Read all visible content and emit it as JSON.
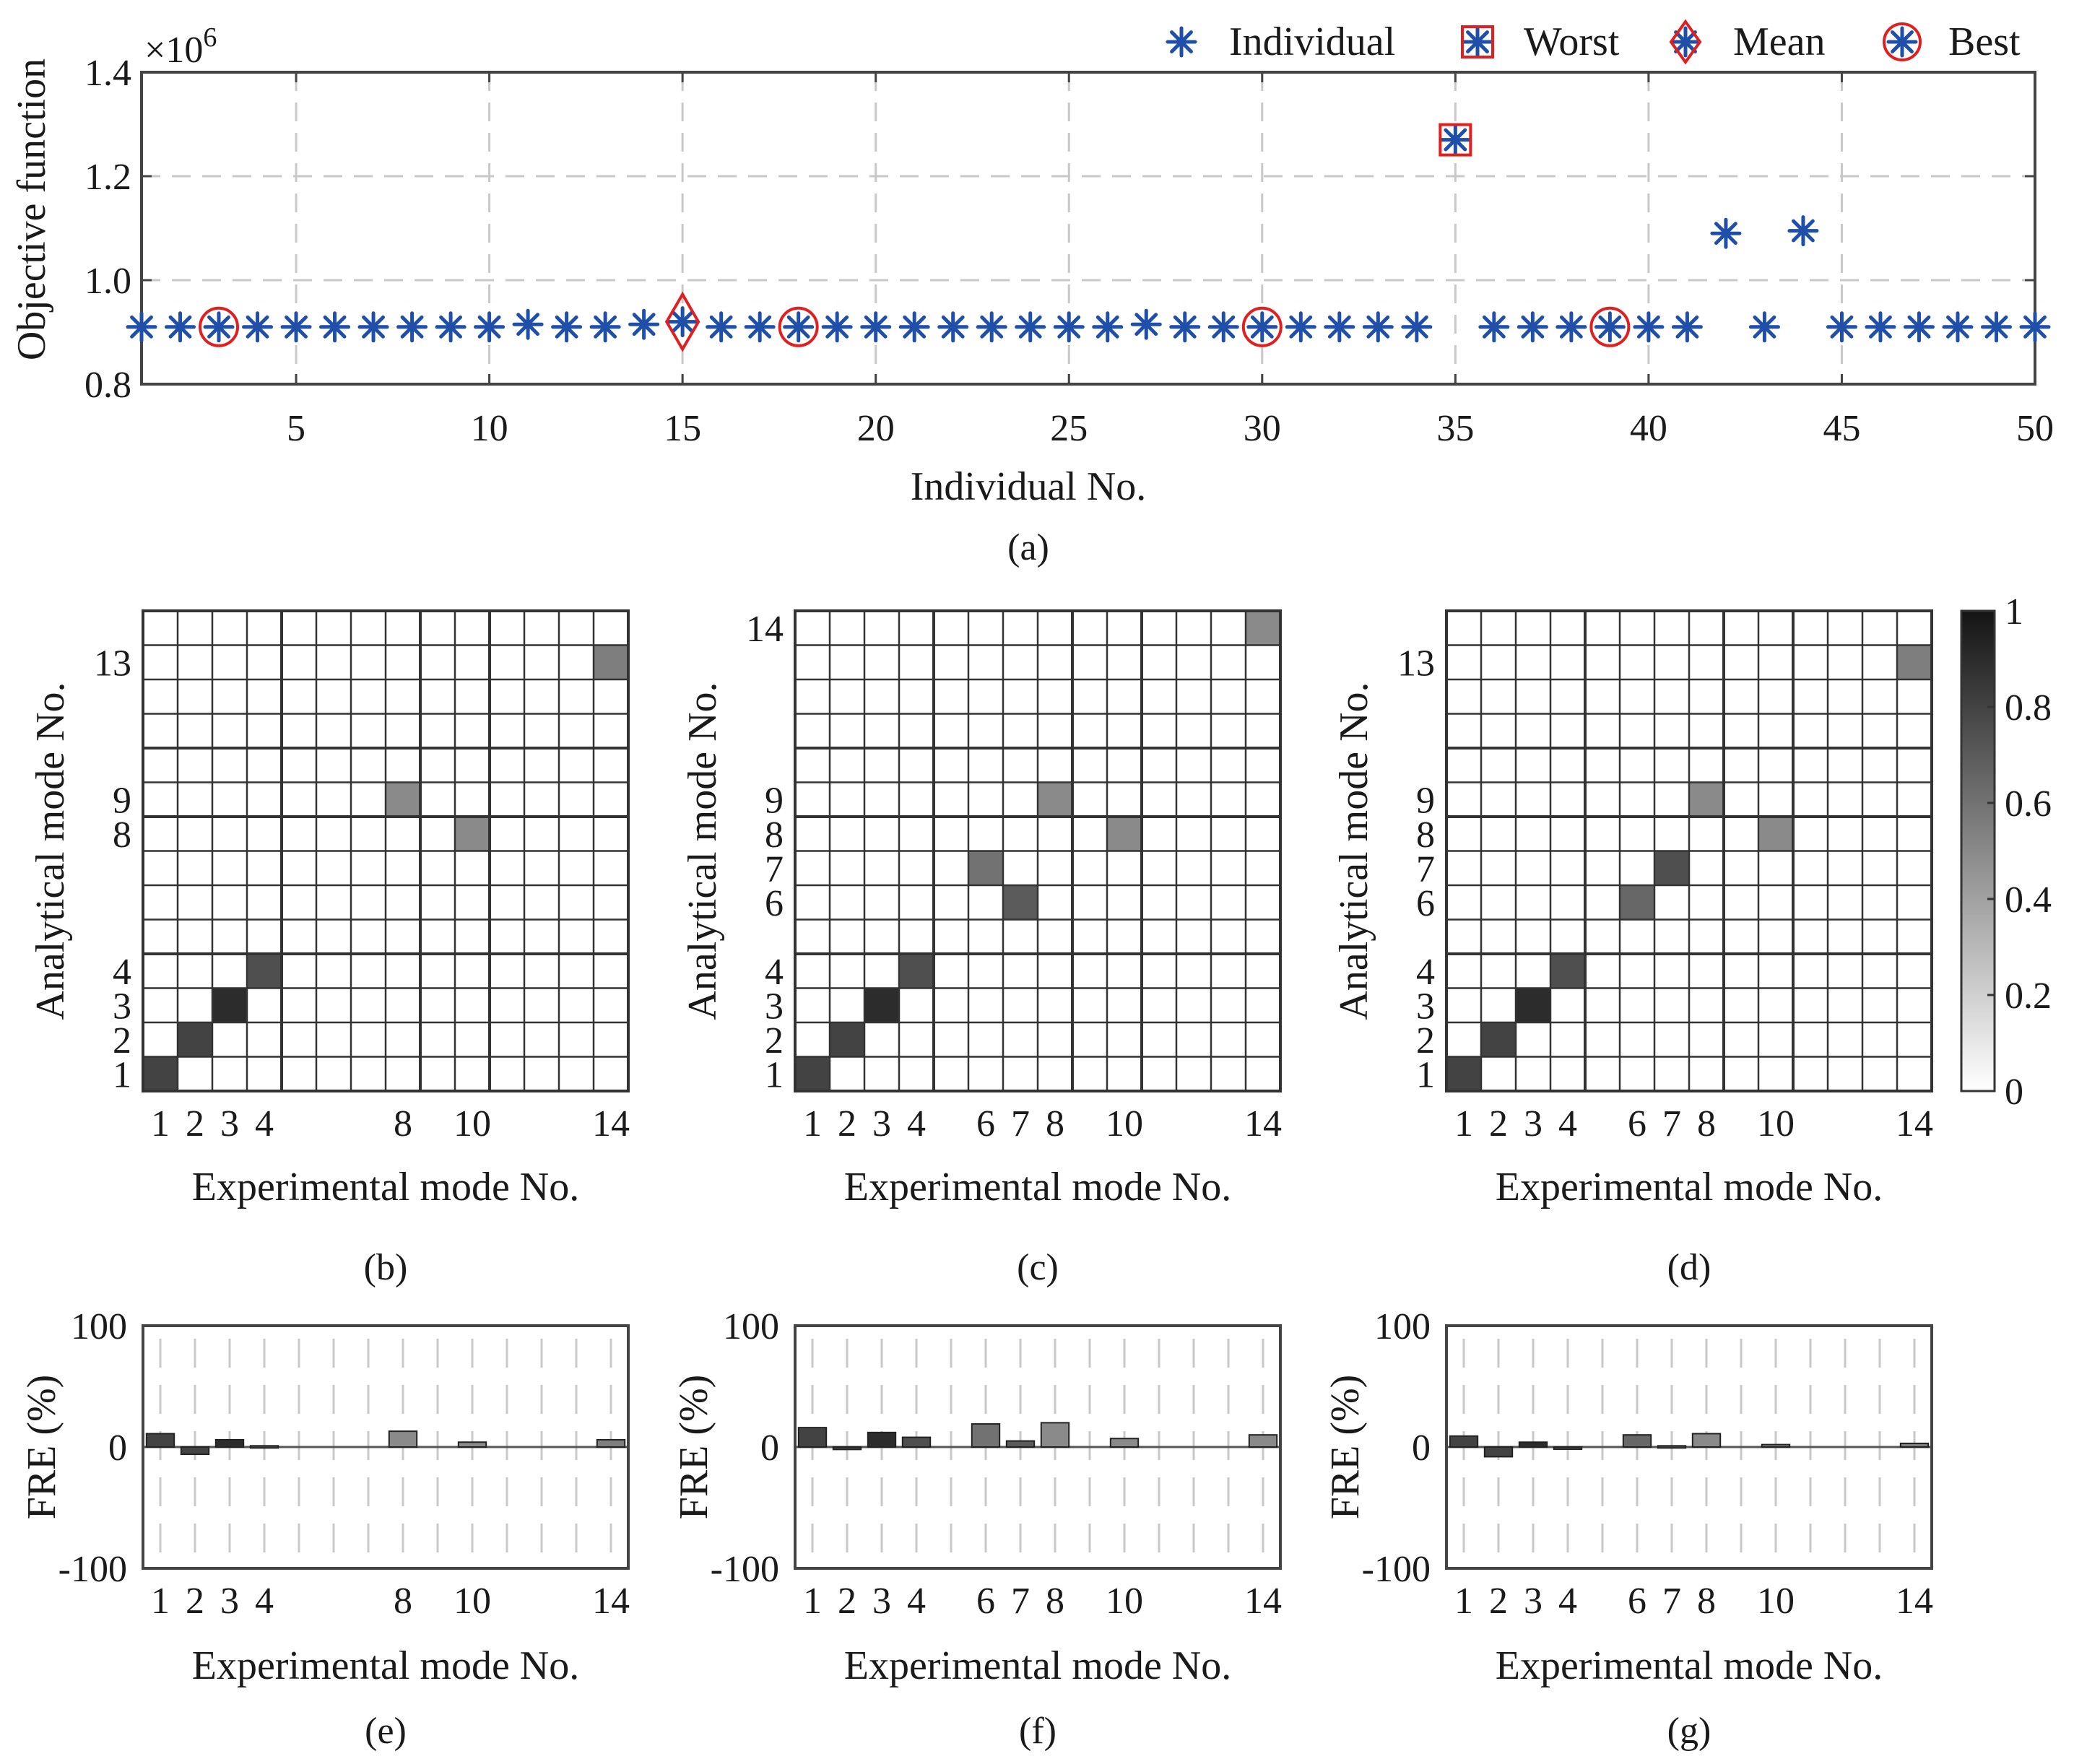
{
  "colors": {
    "marker": "#1f4fa8",
    "highlight": "#e02020",
    "grid": "#c8c8c8",
    "axis": "#444444",
    "text": "#1a1a1a"
  },
  "chart_data": [
    {
      "panel": "a",
      "type": "scatter",
      "caption": "(a)",
      "xlabel": "Individual No.",
      "ylabel": "Objective function",
      "exponent_prefix": "×10",
      "exponent_power": "6",
      "xlim": [
        1,
        50
      ],
      "ylim": [
        0.8,
        1.4
      ],
      "xticks": [
        5,
        10,
        15,
        20,
        25,
        30,
        35,
        40,
        45,
        50
      ],
      "yticks": [
        0.8,
        1.0,
        1.2,
        1.4
      ],
      "ytick_labels": [
        "0.8",
        "1.0",
        "1.2",
        "1.4"
      ],
      "legend": [
        {
          "key": "individual",
          "label": "Individual"
        },
        {
          "key": "worst",
          "label": "Worst"
        },
        {
          "key": "mean",
          "label": "Mean"
        },
        {
          "key": "best",
          "label": "Best"
        }
      ],
      "x": [
        1,
        2,
        3,
        4,
        5,
        6,
        7,
        8,
        9,
        10,
        11,
        12,
        13,
        14,
        15,
        16,
        17,
        18,
        19,
        20,
        21,
        22,
        23,
        24,
        25,
        26,
        27,
        28,
        29,
        30,
        31,
        32,
        33,
        34,
        35,
        36,
        37,
        38,
        39,
        40,
        41,
        42,
        43,
        44,
        45,
        46,
        47,
        48,
        49,
        50
      ],
      "y": [
        0.91,
        0.91,
        0.91,
        0.91,
        0.91,
        0.91,
        0.91,
        0.91,
        0.91,
        0.91,
        0.915,
        0.91,
        0.91,
        0.915,
        0.92,
        0.91,
        0.91,
        0.91,
        0.91,
        0.91,
        0.91,
        0.91,
        0.91,
        0.91,
        0.91,
        0.91,
        0.915,
        0.91,
        0.91,
        0.91,
        0.91,
        0.91,
        0.91,
        0.91,
        1.27,
        0.91,
        0.91,
        0.91,
        0.91,
        0.91,
        0.91,
        1.09,
        0.91,
        1.095,
        0.91,
        0.91,
        0.91,
        0.91,
        0.91,
        0.91
      ],
      "worst": [
        35
      ],
      "mean": [
        15
      ],
      "best": [
        3,
        18,
        30,
        39
      ]
    },
    {
      "panel": "b",
      "type": "heatmap",
      "caption": "(b)",
      "xlabel": "Experimental mode No.",
      "ylabel": "Analytical mode No.",
      "size": 14,
      "xtick_labels": [
        "1",
        "2",
        "3",
        "4",
        "8",
        "10",
        "14"
      ],
      "xtick_positions": [
        1,
        2,
        3,
        4,
        8,
        10,
        14
      ],
      "ytick_labels": [
        "1",
        "2",
        "3",
        "4",
        "8",
        "9",
        "13"
      ],
      "ytick_positions": [
        1,
        2,
        3,
        4,
        8,
        9,
        13
      ],
      "grid_groups": [
        4,
        8,
        10
      ],
      "cells": [
        {
          "exp": 1,
          "ana": 1,
          "value": 0.8
        },
        {
          "exp": 2,
          "ana": 2,
          "value": 0.8
        },
        {
          "exp": 3,
          "ana": 3,
          "value": 0.9
        },
        {
          "exp": 4,
          "ana": 4,
          "value": 0.75
        },
        {
          "exp": 8,
          "ana": 9,
          "value": 0.5
        },
        {
          "exp": 10,
          "ana": 8,
          "value": 0.5
        },
        {
          "exp": 14,
          "ana": 13,
          "value": 0.55
        }
      ]
    },
    {
      "panel": "c",
      "type": "heatmap",
      "caption": "(c)",
      "xlabel": "Experimental mode No.",
      "ylabel": "Analytical mode No.",
      "size": 14,
      "xtick_labels": [
        "1",
        "2",
        "3",
        "4",
        "6",
        "7",
        "8",
        "10",
        "14"
      ],
      "xtick_positions": [
        1,
        2,
        3,
        4,
        6,
        7,
        8,
        10,
        14
      ],
      "ytick_labels": [
        "1",
        "2",
        "3",
        "4",
        "6",
        "7",
        "8",
        "9",
        "14"
      ],
      "ytick_positions": [
        1,
        2,
        3,
        4,
        6,
        7,
        8,
        9,
        14
      ],
      "grid_groups": [
        4,
        8,
        10
      ],
      "cells": [
        {
          "exp": 1,
          "ana": 1,
          "value": 0.8
        },
        {
          "exp": 2,
          "ana": 2,
          "value": 0.8
        },
        {
          "exp": 3,
          "ana": 3,
          "value": 0.9
        },
        {
          "exp": 4,
          "ana": 4,
          "value": 0.75
        },
        {
          "exp": 6,
          "ana": 7,
          "value": 0.6
        },
        {
          "exp": 7,
          "ana": 6,
          "value": 0.7
        },
        {
          "exp": 8,
          "ana": 9,
          "value": 0.5
        },
        {
          "exp": 10,
          "ana": 8,
          "value": 0.5
        },
        {
          "exp": 14,
          "ana": 14,
          "value": 0.5
        }
      ]
    },
    {
      "panel": "d",
      "type": "heatmap",
      "caption": "(d)",
      "xlabel": "Experimental mode No.",
      "ylabel": "Analytical mode No.",
      "size": 14,
      "xtick_labels": [
        "1",
        "2",
        "3",
        "4",
        "6",
        "7",
        "8",
        "10",
        "14"
      ],
      "xtick_positions": [
        1,
        2,
        3,
        4,
        6,
        7,
        8,
        10,
        14
      ],
      "ytick_labels": [
        "1",
        "2",
        "3",
        "4",
        "6",
        "7",
        "8",
        "9",
        "13"
      ],
      "ytick_positions": [
        1,
        2,
        3,
        4,
        6,
        7,
        8,
        9,
        13
      ],
      "grid_groups": [
        4,
        8,
        10
      ],
      "cells": [
        {
          "exp": 1,
          "ana": 1,
          "value": 0.8
        },
        {
          "exp": 2,
          "ana": 2,
          "value": 0.8
        },
        {
          "exp": 3,
          "ana": 3,
          "value": 0.9
        },
        {
          "exp": 4,
          "ana": 4,
          "value": 0.75
        },
        {
          "exp": 6,
          "ana": 6,
          "value": 0.65
        },
        {
          "exp": 7,
          "ana": 7,
          "value": 0.75
        },
        {
          "exp": 8,
          "ana": 9,
          "value": 0.5
        },
        {
          "exp": 10,
          "ana": 8,
          "value": 0.5
        },
        {
          "exp": 14,
          "ana": 13,
          "value": 0.55
        }
      ]
    },
    {
      "panel": "e",
      "type": "bar",
      "caption": "(e)",
      "xlabel": "Experimental mode No.",
      "ylabel": "FRE (%)",
      "ylim": [
        -100,
        100
      ],
      "ytick_labels": [
        "-100",
        "0",
        "100"
      ],
      "ytick_values": [
        -100,
        0,
        100
      ],
      "xtick_labels": [
        "1",
        "2",
        "3",
        "4",
        "8",
        "10",
        "14"
      ],
      "xtick_positions": [
        1,
        2,
        3,
        4,
        8,
        10,
        14
      ],
      "bars": [
        {
          "mode": 1,
          "value": 11,
          "shade": 0.8
        },
        {
          "mode": 2,
          "value": -6,
          "shade": 0.8
        },
        {
          "mode": 3,
          "value": 6,
          "shade": 0.9
        },
        {
          "mode": 4,
          "value": 1,
          "shade": 0.75
        },
        {
          "mode": 8,
          "value": 13,
          "shade": 0.5
        },
        {
          "mode": 10,
          "value": 4,
          "shade": 0.5
        },
        {
          "mode": 14,
          "value": 6,
          "shade": 0.55
        }
      ]
    },
    {
      "panel": "f",
      "type": "bar",
      "caption": "(f)",
      "xlabel": "Experimental mode No.",
      "ylabel": "FRE (%)",
      "ylim": [
        -100,
        100
      ],
      "ytick_labels": [
        "-100",
        "0",
        "100"
      ],
      "ytick_values": [
        -100,
        0,
        100
      ],
      "xtick_labels": [
        "1",
        "2",
        "3",
        "4",
        "6",
        "7",
        "8",
        "10",
        "14"
      ],
      "xtick_positions": [
        1,
        2,
        3,
        4,
        6,
        7,
        8,
        10,
        14
      ],
      "bars": [
        {
          "mode": 1,
          "value": 16,
          "shade": 0.8
        },
        {
          "mode": 2,
          "value": -2,
          "shade": 0.8
        },
        {
          "mode": 3,
          "value": 12,
          "shade": 0.9
        },
        {
          "mode": 4,
          "value": 8,
          "shade": 0.75
        },
        {
          "mode": 6,
          "value": 19,
          "shade": 0.6
        },
        {
          "mode": 7,
          "value": 5,
          "shade": 0.7
        },
        {
          "mode": 8,
          "value": 20,
          "shade": 0.5
        },
        {
          "mode": 10,
          "value": 7,
          "shade": 0.5
        },
        {
          "mode": 14,
          "value": 10,
          "shade": 0.5
        }
      ]
    },
    {
      "panel": "g",
      "type": "bar",
      "caption": "(g)",
      "xlabel": "Experimental mode No.",
      "ylabel": "FRE (%)",
      "ylim": [
        -100,
        100
      ],
      "ytick_labels": [
        "-100",
        "0",
        "100"
      ],
      "ytick_values": [
        -100,
        0,
        100
      ],
      "xtick_labels": [
        "1",
        "2",
        "3",
        "4",
        "6",
        "7",
        "8",
        "10",
        "14"
      ],
      "xtick_positions": [
        1,
        2,
        3,
        4,
        6,
        7,
        8,
        10,
        14
      ],
      "bars": [
        {
          "mode": 1,
          "value": 9,
          "shade": 0.8
        },
        {
          "mode": 2,
          "value": -8,
          "shade": 0.8
        },
        {
          "mode": 3,
          "value": 4,
          "shade": 0.9
        },
        {
          "mode": 4,
          "value": -1,
          "shade": 0.75
        },
        {
          "mode": 6,
          "value": 10,
          "shade": 0.65
        },
        {
          "mode": 7,
          "value": 1,
          "shade": 0.75
        },
        {
          "mode": 8,
          "value": 11,
          "shade": 0.5
        },
        {
          "mode": 10,
          "value": 2,
          "shade": 0.5
        },
        {
          "mode": 14,
          "value": 3,
          "shade": 0.55
        }
      ]
    }
  ],
  "colorbar": {
    "min": 0,
    "max": 1,
    "tick_labels": [
      "0",
      "0.2",
      "0.4",
      "0.6",
      "0.8",
      "1"
    ],
    "tick_values": [
      0,
      0.2,
      0.4,
      0.6,
      0.8,
      1
    ]
  }
}
